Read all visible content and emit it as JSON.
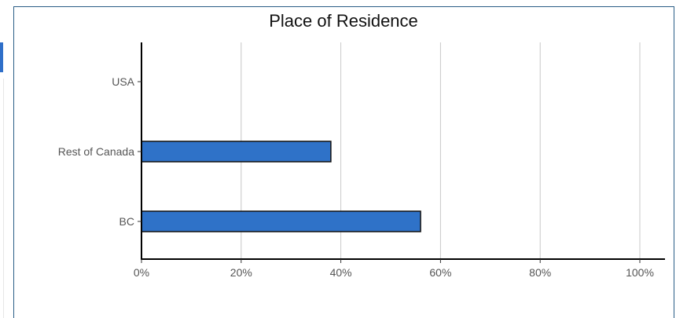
{
  "chart_data": {
    "type": "bar",
    "orientation": "horizontal",
    "title": "Place of Residence",
    "categories": [
      "USA",
      "Rest of Canada",
      "BC"
    ],
    "values": [
      0,
      38,
      56
    ],
    "xlim": [
      0,
      100
    ],
    "xticks": [
      "0%",
      "20%",
      "40%",
      "60%",
      "80%",
      "100%"
    ],
    "grid": "vertical",
    "bar_color": "#2f72c8"
  }
}
